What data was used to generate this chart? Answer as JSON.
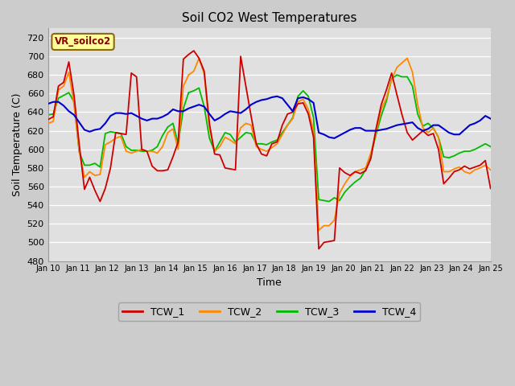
{
  "title": "Soil CO2 West Temperatures",
  "xlabel": "Time",
  "ylabel": "Soil Temperature (C)",
  "annotation": "VR_soilco2",
  "ylim": [
    480,
    730
  ],
  "yticks": [
    480,
    500,
    520,
    540,
    560,
    580,
    600,
    620,
    640,
    660,
    680,
    700,
    720
  ],
  "x_labels": [
    "Jan 10",
    "Jan 11",
    "Jan 12",
    "Jan 13",
    "Jan 14",
    "Jan 15",
    "Jan 16",
    "Jan 17",
    "Jan 18",
    "Jan 19",
    "Jan 20",
    "Jan 21",
    "Jan 22",
    "Jan 23",
    "Jan 24",
    "Jan 25"
  ],
  "colors": {
    "TCW_1": "#cc0000",
    "TCW_2": "#ff8800",
    "TCW_3": "#00bb00",
    "TCW_4": "#0000cc"
  },
  "TCW_1": [
    632,
    635,
    668,
    672,
    694,
    658,
    605,
    557,
    570,
    556,
    544,
    558,
    580,
    618,
    617,
    616,
    682,
    678,
    600,
    598,
    582,
    577,
    577,
    578,
    592,
    608,
    697,
    702,
    706,
    698,
    684,
    628,
    595,
    594,
    580,
    579,
    578,
    700,
    668,
    636,
    606,
    595,
    593,
    606,
    608,
    626,
    638,
    640,
    649,
    650,
    638,
    613,
    493,
    500,
    501,
    502,
    580,
    575,
    572,
    576,
    574,
    577,
    590,
    622,
    648,
    664,
    682,
    659,
    637,
    618,
    610,
    615,
    620,
    615,
    617,
    600,
    563,
    569,
    576,
    578,
    582,
    579,
    581,
    583,
    588,
    558
  ],
  "TCW_2": [
    628,
    630,
    664,
    668,
    683,
    648,
    598,
    570,
    576,
    572,
    573,
    605,
    608,
    612,
    614,
    598,
    596,
    598,
    600,
    598,
    598,
    596,
    603,
    618,
    622,
    600,
    668,
    680,
    684,
    698,
    681,
    623,
    598,
    603,
    613,
    610,
    606,
    623,
    628,
    626,
    603,
    600,
    598,
    602,
    606,
    616,
    626,
    633,
    651,
    654,
    643,
    620,
    513,
    518,
    518,
    524,
    553,
    563,
    571,
    576,
    578,
    580,
    596,
    618,
    643,
    655,
    675,
    688,
    693,
    698,
    683,
    648,
    623,
    618,
    623,
    613,
    576,
    576,
    579,
    581,
    576,
    574,
    578,
    580,
    583,
    578
  ],
  "TCW_3": [
    637,
    638,
    655,
    658,
    661,
    651,
    597,
    583,
    583,
    585,
    581,
    617,
    619,
    618,
    617,
    603,
    599,
    599,
    598,
    598,
    599,
    603,
    615,
    624,
    628,
    606,
    644,
    661,
    663,
    666,
    646,
    612,
    598,
    608,
    618,
    616,
    608,
    613,
    618,
    617,
    606,
    606,
    605,
    608,
    610,
    618,
    626,
    634,
    657,
    663,
    657,
    634,
    546,
    545,
    544,
    548,
    545,
    554,
    560,
    565,
    569,
    578,
    593,
    616,
    636,
    652,
    676,
    680,
    678,
    678,
    668,
    638,
    625,
    628,
    623,
    613,
    592,
    591,
    593,
    596,
    598,
    598,
    600,
    603,
    606,
    603
  ],
  "TCW_4": [
    649,
    651,
    651,
    647,
    641,
    637,
    629,
    621,
    619,
    621,
    622,
    628,
    636,
    639,
    639,
    638,
    639,
    636,
    633,
    631,
    633,
    633,
    635,
    638,
    643,
    641,
    641,
    644,
    646,
    648,
    646,
    638,
    631,
    634,
    638,
    641,
    640,
    639,
    643,
    648,
    651,
    653,
    654,
    656,
    657,
    655,
    648,
    641,
    655,
    656,
    654,
    650,
    618,
    616,
    613,
    612,
    615,
    618,
    621,
    623,
    623,
    620,
    620,
    620,
    621,
    622,
    624,
    626,
    627,
    628,
    629,
    623,
    620,
    622,
    626,
    626,
    622,
    618,
    616,
    616,
    621,
    626,
    628,
    631,
    636,
    633
  ]
}
